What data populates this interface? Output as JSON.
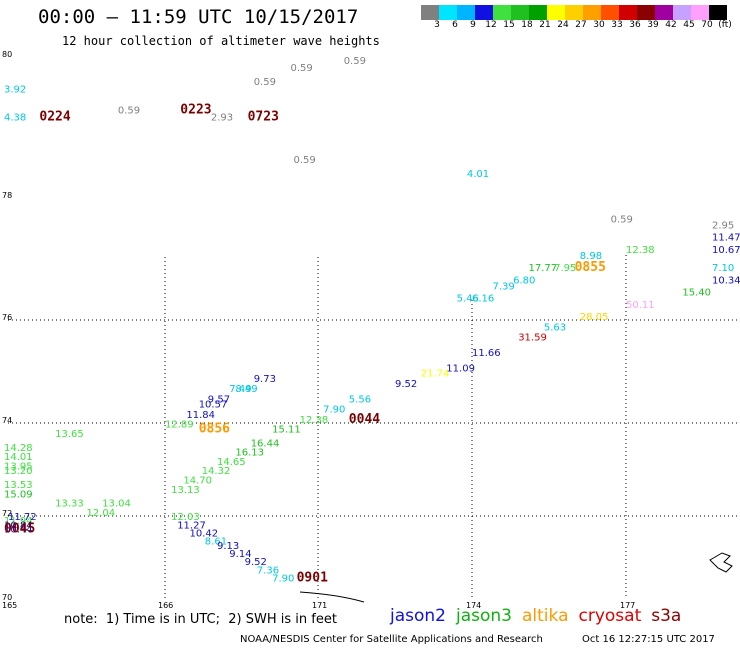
{
  "title": "00:00 – 11:59 UTC 10/15/2017",
  "subtitle": "12 hour collection of altimeter wave heights",
  "colorbar": {
    "colors": [
      "#808080",
      "#00e5ff",
      "#00b4ff",
      "#1010e0",
      "#40e040",
      "#20c020",
      "#00a000",
      "#ffff00",
      "#ffd000",
      "#ffa000",
      "#ff5000",
      "#d00000",
      "#8b0000",
      "#a000a0",
      "#c8a0ff",
      "#ffa0ff",
      "#000000"
    ],
    "labels": [
      "3",
      "6",
      "9",
      "12",
      "15",
      "18",
      "21",
      "24",
      "27",
      "30",
      "33",
      "36",
      "39",
      "42",
      "45",
      "70",
      "(ft)"
    ]
  },
  "map": {
    "lat_labels": [
      "80",
      "78",
      "76",
      "74",
      "72",
      "70"
    ],
    "lon_labels": [
      "165",
      "166",
      "171",
      "174",
      "177"
    ],
    "points": [
      {
        "t": "3.92",
        "c": "#00c8e0",
        "lon": 164.6,
        "lat": 79.5
      },
      {
        "t": "4.38",
        "c": "#00c8e0",
        "lon": 164.8,
        "lat": 79.1
      },
      {
        "t": "0.59",
        "c": "#808080",
        "lon": 165.7,
        "lat": 79.2
      },
      {
        "t": "0.59",
        "c": "#808080",
        "lon": 168.9,
        "lat": 79.6
      },
      {
        "t": "0.59",
        "c": "#808080",
        "lon": 170.1,
        "lat": 79.8
      },
      {
        "t": "0.59",
        "c": "#808080",
        "lon": 171.5,
        "lat": 79.9
      },
      {
        "t": "0.59",
        "c": "#808080",
        "lon": 170.2,
        "lat": 78.5
      },
      {
        "t": "2.93",
        "c": "#808080",
        "lon": 167.5,
        "lat": 79.1
      },
      {
        "t": "4.01",
        "c": "#00c8e0",
        "lon": 173.9,
        "lat": 78.3
      },
      {
        "t": "0.59",
        "c": "#808080",
        "lon": 176.7,
        "lat": 77.6
      },
      {
        "t": "2.95",
        "c": "#808080",
        "lon": 179.7,
        "lat": 77.5
      },
      {
        "t": "11.47",
        "c": "#1010c0",
        "lon": 178.9,
        "lat": 77.3
      },
      {
        "t": "10.67",
        "c": "#1010c0",
        "lon": 179.7,
        "lat": 77.1
      },
      {
        "t": "7.10",
        "c": "#00c8e0",
        "lon": 179.8,
        "lat": 76.8
      },
      {
        "t": "12.38",
        "c": "#40e040",
        "lon": 177.0,
        "lat": 77.1
      },
      {
        "t": "8.98",
        "c": "#00c8e0",
        "lon": 176.1,
        "lat": 77.0
      },
      {
        "t": "17.77",
        "c": "#20c020",
        "lon": 175.1,
        "lat": 76.8
      },
      {
        "t": "7.95",
        "c": "#40e040",
        "lon": 175.6,
        "lat": 76.8
      },
      {
        "t": "6.80",
        "c": "#00c8e0",
        "lon": 174.8,
        "lat": 76.6
      },
      {
        "t": "7.39",
        "c": "#00c8e0",
        "lon": 174.4,
        "lat": 76.5
      },
      {
        "t": "5.46",
        "c": "#00c8e0",
        "lon": 173.7,
        "lat": 76.3
      },
      {
        "t": "6.16",
        "c": "#00c8e0",
        "lon": 174.0,
        "lat": 76.3
      },
      {
        "t": "15.40",
        "c": "#20c020",
        "lon": 178.1,
        "lat": 76.4
      },
      {
        "t": "10.34",
        "c": "#1010c0",
        "lon": 178.8,
        "lat": 76.6
      },
      {
        "t": "50.11",
        "c": "#ffa0ff",
        "lon": 177.0,
        "lat": 76.2
      },
      {
        "t": "28.05",
        "c": "#ffd000",
        "lon": 176.1,
        "lat": 76.0
      },
      {
        "t": "5.63",
        "c": "#00c8e0",
        "lon": 175.4,
        "lat": 75.8
      },
      {
        "t": "31.59",
        "c": "#d00000",
        "lon": 174.9,
        "lat": 75.6
      },
      {
        "t": "11.66",
        "c": "#1010c0",
        "lon": 174.0,
        "lat": 75.3
      },
      {
        "t": "11.09",
        "c": "#1010c0",
        "lon": 173.5,
        "lat": 75.0
      },
      {
        "t": "21.74",
        "c": "#ffff00",
        "lon": 173.0,
        "lat": 74.9
      },
      {
        "t": "9.52",
        "c": "#1010c0",
        "lon": 172.5,
        "lat": 74.7
      },
      {
        "t": "5.56",
        "c": "#00c8e0",
        "lon": 171.6,
        "lat": 74.4
      },
      {
        "t": "7.90",
        "c": "#00c8e0",
        "lon": 171.1,
        "lat": 74.2
      },
      {
        "t": "12.38",
        "c": "#40e040",
        "lon": 170.4,
        "lat": 74.0
      },
      {
        "t": "15.11",
        "c": "#20c020",
        "lon": 169.5,
        "lat": 73.8
      },
      {
        "t": "16.44",
        "c": "#20c020",
        "lon": 168.8,
        "lat": 73.5
      },
      {
        "t": "16.13",
        "c": "#20c020",
        "lon": 168.3,
        "lat": 73.3
      },
      {
        "t": "14.65",
        "c": "#40e040",
        "lon": 167.7,
        "lat": 73.1
      },
      {
        "t": "14.32",
        "c": "#40e040",
        "lon": 167.2,
        "lat": 72.9
      },
      {
        "t": "14.70",
        "c": "#40e040",
        "lon": 166.6,
        "lat": 72.7
      },
      {
        "t": "13.13",
        "c": "#40e040",
        "lon": 166.2,
        "lat": 72.5
      },
      {
        "t": "9.73",
        "c": "#1010c0",
        "lon": 168.9,
        "lat": 74.8
      },
      {
        "t": "8.49",
        "c": "#00c8e0",
        "lon": 168.3,
        "lat": 74.6
      },
      {
        "t": "7.49",
        "c": "#00c8e0",
        "lon": 168.1,
        "lat": 74.6
      },
      {
        "t": "9.57",
        "c": "#1010c0",
        "lon": 167.4,
        "lat": 74.4
      },
      {
        "t": "10.57",
        "c": "#1010c0",
        "lon": 167.1,
        "lat": 74.3
      },
      {
        "t": "11.84",
        "c": "#1010c0",
        "lon": 166.7,
        "lat": 74.1
      },
      {
        "t": "12.89",
        "c": "#40e040",
        "lon": 166.0,
        "lat": 73.9
      },
      {
        "t": "13.65",
        "c": "#40e040",
        "lon": 165.3,
        "lat": 73.7
      },
      {
        "t": "14.28",
        "c": "#40e040",
        "lon": 164.8,
        "lat": 73.4
      },
      {
        "t": "14.01",
        "c": "#40e040",
        "lon": 164.2,
        "lat": 73.2
      },
      {
        "t": "13.95",
        "c": "#40e040",
        "lon": 163.8,
        "lat": 73.0
      },
      {
        "t": "13.20",
        "c": "#40e040",
        "lon": 163.6,
        "lat": 72.9
      },
      {
        "t": "13.53",
        "c": "#40e040",
        "lon": 164.2,
        "lat": 72.6
      },
      {
        "t": "15.09",
        "c": "#20c020",
        "lon": 164.8,
        "lat": 72.4
      },
      {
        "t": "13.33",
        "c": "#40e040",
        "lon": 165.3,
        "lat": 72.2
      },
      {
        "t": "13.04",
        "c": "#40e040",
        "lon": 165.6,
        "lat": 72.2
      },
      {
        "t": "12.04",
        "c": "#40e040",
        "lon": 165.5,
        "lat": 72.0
      },
      {
        "t": "11.72",
        "c": "#1010c0",
        "lon": 165.0,
        "lat": 71.9
      },
      {
        "t": "12.03",
        "c": "#40e040",
        "lon": 166.2,
        "lat": 71.9
      },
      {
        "t": "11.94",
        "c": "#40e040",
        "lon": 164.8,
        "lat": 71.8
      },
      {
        "t": "10.84",
        "c": "#1010c0",
        "lon": 164.5,
        "lat": 71.7
      },
      {
        "t": "10.44",
        "c": "#1010c0",
        "lon": 163.9,
        "lat": 71.6
      },
      {
        "t": "11.27",
        "c": "#1010c0",
        "lon": 166.4,
        "lat": 71.7
      },
      {
        "t": "10.42",
        "c": "#1010c0",
        "lon": 166.8,
        "lat": 71.5
      },
      {
        "t": "8.61",
        "c": "#00c8e0",
        "lon": 167.3,
        "lat": 71.3
      },
      {
        "t": "9.13",
        "c": "#1010c0",
        "lon": 167.7,
        "lat": 71.2
      },
      {
        "t": "9.14",
        "c": "#1010c0",
        "lon": 168.1,
        "lat": 71.0
      },
      {
        "t": "9.52",
        "c": "#1010c0",
        "lon": 168.6,
        "lat": 70.8
      },
      {
        "t": "7.36",
        "c": "#00c8e0",
        "lon": 169.0,
        "lat": 70.6
      },
      {
        "t": "7.90",
        "c": "#00c8e0",
        "lon": 169.5,
        "lat": 70.4
      }
    ],
    "time_labels": [
      {
        "t": "0224",
        "c": "#7a0000",
        "lon": 165.2,
        "lat": 79.1
      },
      {
        "t": "0223",
        "c": "#7a0000",
        "lon": 166.5,
        "lat": 79.2
      },
      {
        "t": "0723",
        "c": "#7a0000",
        "lon": 168.7,
        "lat": 79.1
      },
      {
        "t": "0044",
        "c": "#7a0000",
        "lon": 171.6,
        "lat": 74.0
      },
      {
        "t": "0045",
        "c": "#7a0000",
        "lon": 164.9,
        "lat": 71.6
      },
      {
        "t": "0901",
        "c": "#7a0000",
        "lon": 170.3,
        "lat": 70.4
      },
      {
        "t": "0855",
        "c": "#ff9900",
        "lon": 176.0,
        "lat": 76.8
      },
      {
        "t": "0856",
        "c": "#ff9900",
        "lon": 167.1,
        "lat": 73.8
      }
    ]
  },
  "note": "note:  1) Time is in UTC;  2) SWH is in feet",
  "legend": [
    {
      "label": "jason2",
      "color": "#1010e0"
    },
    {
      "label": "jason3",
      "color": "#10b010"
    },
    {
      "label": "altika",
      "color": "#ff9900"
    },
    {
      "label": "cryosat",
      "color": "#e00000"
    },
    {
      "label": "s3a",
      "color": "#8b0000"
    }
  ],
  "credit": "NOAA/NESDIS Center for Satellite Applications and Research",
  "timestamp": "Oct 16 12:27:15 UTC 2017"
}
